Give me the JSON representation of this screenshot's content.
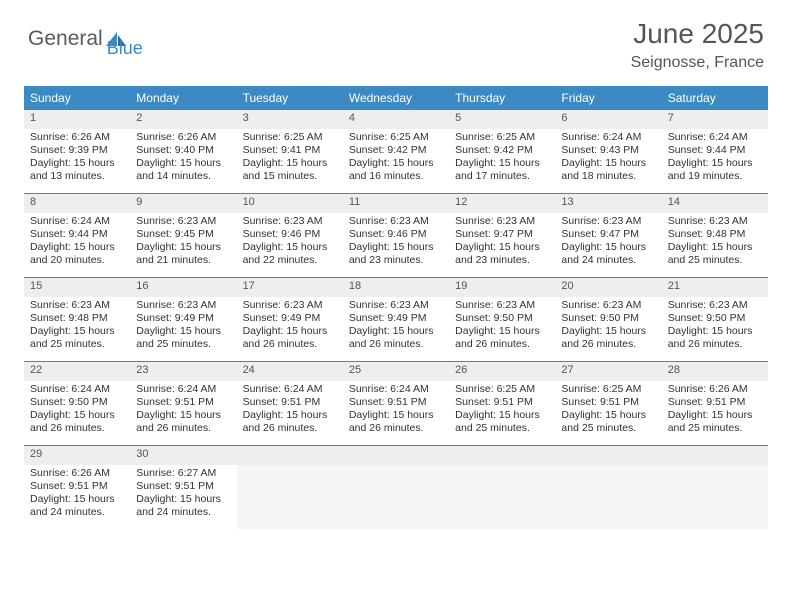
{
  "logo": {
    "text1": "General",
    "text2": "Blue"
  },
  "title": "June 2025",
  "subtitle": "Seignosse, France",
  "day_headers": [
    "Sunday",
    "Monday",
    "Tuesday",
    "Wednesday",
    "Thursday",
    "Friday",
    "Saturday"
  ],
  "colors": {
    "accent": "#3b8ac4",
    "header_bg": "#3b8ac4",
    "header_text": "#ffffff",
    "daynum_bg": "#eeeeee",
    "text": "#333333",
    "title": "#555555"
  },
  "layout": {
    "columns": 7,
    "rows": 5,
    "total_days": 30
  },
  "days": [
    {
      "n": "1",
      "sunrise": "Sunrise: 6:26 AM",
      "sunset": "Sunset: 9:39 PM",
      "dl1": "Daylight: 15 hours",
      "dl2": "and 13 minutes."
    },
    {
      "n": "2",
      "sunrise": "Sunrise: 6:26 AM",
      "sunset": "Sunset: 9:40 PM",
      "dl1": "Daylight: 15 hours",
      "dl2": "and 14 minutes."
    },
    {
      "n": "3",
      "sunrise": "Sunrise: 6:25 AM",
      "sunset": "Sunset: 9:41 PM",
      "dl1": "Daylight: 15 hours",
      "dl2": "and 15 minutes."
    },
    {
      "n": "4",
      "sunrise": "Sunrise: 6:25 AM",
      "sunset": "Sunset: 9:42 PM",
      "dl1": "Daylight: 15 hours",
      "dl2": "and 16 minutes."
    },
    {
      "n": "5",
      "sunrise": "Sunrise: 6:25 AM",
      "sunset": "Sunset: 9:42 PM",
      "dl1": "Daylight: 15 hours",
      "dl2": "and 17 minutes."
    },
    {
      "n": "6",
      "sunrise": "Sunrise: 6:24 AM",
      "sunset": "Sunset: 9:43 PM",
      "dl1": "Daylight: 15 hours",
      "dl2": "and 18 minutes."
    },
    {
      "n": "7",
      "sunrise": "Sunrise: 6:24 AM",
      "sunset": "Sunset: 9:44 PM",
      "dl1": "Daylight: 15 hours",
      "dl2": "and 19 minutes."
    },
    {
      "n": "8",
      "sunrise": "Sunrise: 6:24 AM",
      "sunset": "Sunset: 9:44 PM",
      "dl1": "Daylight: 15 hours",
      "dl2": "and 20 minutes."
    },
    {
      "n": "9",
      "sunrise": "Sunrise: 6:23 AM",
      "sunset": "Sunset: 9:45 PM",
      "dl1": "Daylight: 15 hours",
      "dl2": "and 21 minutes."
    },
    {
      "n": "10",
      "sunrise": "Sunrise: 6:23 AM",
      "sunset": "Sunset: 9:46 PM",
      "dl1": "Daylight: 15 hours",
      "dl2": "and 22 minutes."
    },
    {
      "n": "11",
      "sunrise": "Sunrise: 6:23 AM",
      "sunset": "Sunset: 9:46 PM",
      "dl1": "Daylight: 15 hours",
      "dl2": "and 23 minutes."
    },
    {
      "n": "12",
      "sunrise": "Sunrise: 6:23 AM",
      "sunset": "Sunset: 9:47 PM",
      "dl1": "Daylight: 15 hours",
      "dl2": "and 23 minutes."
    },
    {
      "n": "13",
      "sunrise": "Sunrise: 6:23 AM",
      "sunset": "Sunset: 9:47 PM",
      "dl1": "Daylight: 15 hours",
      "dl2": "and 24 minutes."
    },
    {
      "n": "14",
      "sunrise": "Sunrise: 6:23 AM",
      "sunset": "Sunset: 9:48 PM",
      "dl1": "Daylight: 15 hours",
      "dl2": "and 25 minutes."
    },
    {
      "n": "15",
      "sunrise": "Sunrise: 6:23 AM",
      "sunset": "Sunset: 9:48 PM",
      "dl1": "Daylight: 15 hours",
      "dl2": "and 25 minutes."
    },
    {
      "n": "16",
      "sunrise": "Sunrise: 6:23 AM",
      "sunset": "Sunset: 9:49 PM",
      "dl1": "Daylight: 15 hours",
      "dl2": "and 25 minutes."
    },
    {
      "n": "17",
      "sunrise": "Sunrise: 6:23 AM",
      "sunset": "Sunset: 9:49 PM",
      "dl1": "Daylight: 15 hours",
      "dl2": "and 26 minutes."
    },
    {
      "n": "18",
      "sunrise": "Sunrise: 6:23 AM",
      "sunset": "Sunset: 9:49 PM",
      "dl1": "Daylight: 15 hours",
      "dl2": "and 26 minutes."
    },
    {
      "n": "19",
      "sunrise": "Sunrise: 6:23 AM",
      "sunset": "Sunset: 9:50 PM",
      "dl1": "Daylight: 15 hours",
      "dl2": "and 26 minutes."
    },
    {
      "n": "20",
      "sunrise": "Sunrise: 6:23 AM",
      "sunset": "Sunset: 9:50 PM",
      "dl1": "Daylight: 15 hours",
      "dl2": "and 26 minutes."
    },
    {
      "n": "21",
      "sunrise": "Sunrise: 6:23 AM",
      "sunset": "Sunset: 9:50 PM",
      "dl1": "Daylight: 15 hours",
      "dl2": "and 26 minutes."
    },
    {
      "n": "22",
      "sunrise": "Sunrise: 6:24 AM",
      "sunset": "Sunset: 9:50 PM",
      "dl1": "Daylight: 15 hours",
      "dl2": "and 26 minutes."
    },
    {
      "n": "23",
      "sunrise": "Sunrise: 6:24 AM",
      "sunset": "Sunset: 9:51 PM",
      "dl1": "Daylight: 15 hours",
      "dl2": "and 26 minutes."
    },
    {
      "n": "24",
      "sunrise": "Sunrise: 6:24 AM",
      "sunset": "Sunset: 9:51 PM",
      "dl1": "Daylight: 15 hours",
      "dl2": "and 26 minutes."
    },
    {
      "n": "25",
      "sunrise": "Sunrise: 6:24 AM",
      "sunset": "Sunset: 9:51 PM",
      "dl1": "Daylight: 15 hours",
      "dl2": "and 26 minutes."
    },
    {
      "n": "26",
      "sunrise": "Sunrise: 6:25 AM",
      "sunset": "Sunset: 9:51 PM",
      "dl1": "Daylight: 15 hours",
      "dl2": "and 25 minutes."
    },
    {
      "n": "27",
      "sunrise": "Sunrise: 6:25 AM",
      "sunset": "Sunset: 9:51 PM",
      "dl1": "Daylight: 15 hours",
      "dl2": "and 25 minutes."
    },
    {
      "n": "28",
      "sunrise": "Sunrise: 6:26 AM",
      "sunset": "Sunset: 9:51 PM",
      "dl1": "Daylight: 15 hours",
      "dl2": "and 25 minutes."
    },
    {
      "n": "29",
      "sunrise": "Sunrise: 6:26 AM",
      "sunset": "Sunset: 9:51 PM",
      "dl1": "Daylight: 15 hours",
      "dl2": "and 24 minutes."
    },
    {
      "n": "30",
      "sunrise": "Sunrise: 6:27 AM",
      "sunset": "Sunset: 9:51 PM",
      "dl1": "Daylight: 15 hours",
      "dl2": "and 24 minutes."
    }
  ]
}
